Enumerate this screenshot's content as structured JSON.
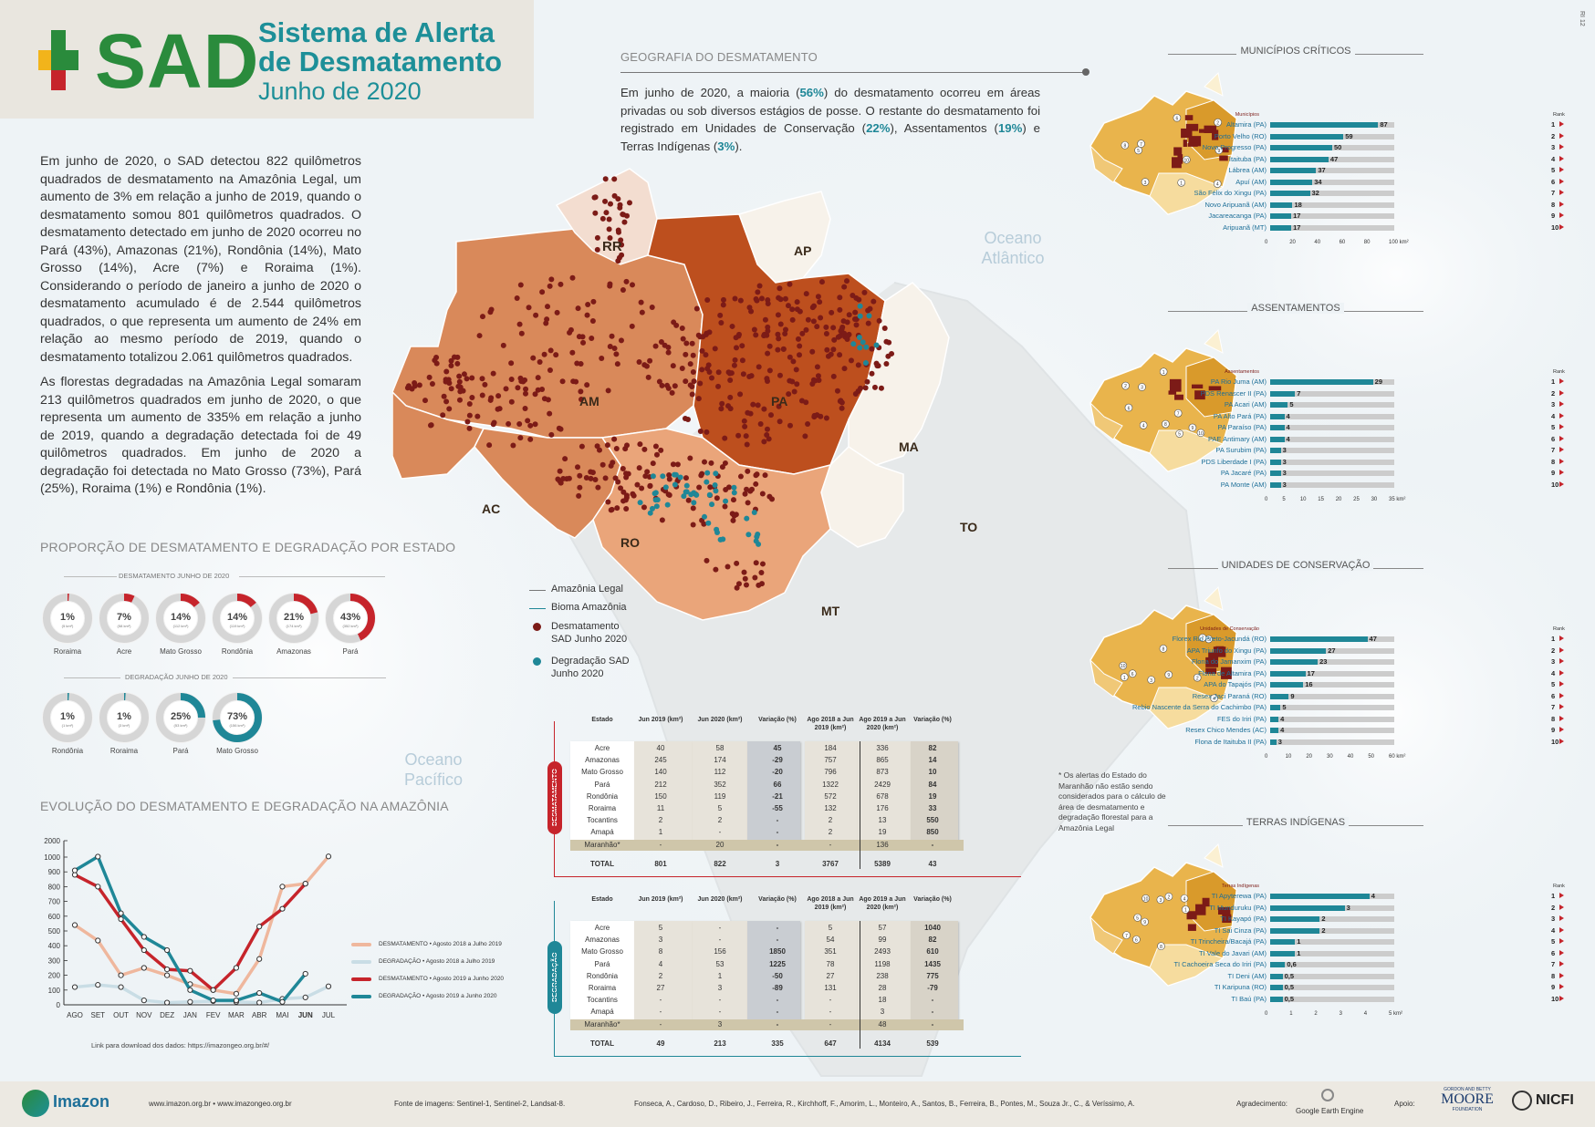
{
  "header": {
    "logo_text": "SAD",
    "title_line1": "Sistema de Alerta",
    "title_line2": "de Desmatamento",
    "subtitle": "Junho de 2020",
    "code": "RI 12"
  },
  "intro": {
    "p1": "Em junho de 2020, o SAD detectou 822 quilômetros quadrados de desmatamento na Amazônia Legal, um aumento de 3% em relação a junho de 2019, quando o desmatamento somou 801 quilômetros quadrados. O desmatamento detectado em junho de 2020 ocorreu no Pará (43%), Amazonas (21%), Rondônia (14%), Mato Grosso (14%), Acre (7%) e Roraima (1%). Considerando o período de janeiro a junho de 2020 o desmatamento acumulado é de 2.544 quilômetros quadrados, o que representa um aumento de 24% em relação ao mesmo período de 2019, quando o desmatamento totalizou 2.061 quilômetros quadrados.",
    "p2": "As florestas degradadas na Amazônia Legal somaram 213 quilômetros quadrados em junho de 2020, o que representa um aumento de 335% em relação a junho de 2019, quando a degradação detectada foi de 49 quilômetros quadrados. Em junho de 2020 a degradação foi detectada no Mato Grosso (73%), Pará (25%), Roraima (1%) e Rondônia (1%)."
  },
  "proportion": {
    "title": "PROPORÇÃO DE DESMATAMENTO E DEGRADAÇÃO POR ESTADO",
    "deforest_label": "DESMATAMENTO JUNHO DE 2020",
    "degrad_label": "DEGRADAÇÃO JUNHO DE 2020",
    "deforest_color": "#c6242b",
    "degrad_color": "#1f8797",
    "deforest": [
      {
        "pct": 1,
        "text": "1%",
        "km": "(5 km²)",
        "state": "Roraima"
      },
      {
        "pct": 7,
        "text": "7%",
        "km": "(58 km²)",
        "state": "Acre"
      },
      {
        "pct": 14,
        "text": "14%",
        "km": "(112 km²)",
        "state": "Mato Grosso"
      },
      {
        "pct": 14,
        "text": "14%",
        "km": "(119 km²)",
        "state": "Rondônia"
      },
      {
        "pct": 21,
        "text": "21%",
        "km": "(174 km²)",
        "state": "Amazonas"
      },
      {
        "pct": 43,
        "text": "43%",
        "km": "(352 km²)",
        "state": "Pará"
      }
    ],
    "degrad": [
      {
        "pct": 1,
        "text": "1%",
        "km": "(1 km²)",
        "state": "Rondônia"
      },
      {
        "pct": 1,
        "text": "1%",
        "km": "(3 km²)",
        "state": "Roraima"
      },
      {
        "pct": 25,
        "text": "25%",
        "km": "(53 km²)",
        "state": "Pará"
      },
      {
        "pct": 73,
        "text": "73%",
        "km": "(156 km²)",
        "state": "Mato Grosso"
      }
    ]
  },
  "evolution": {
    "title": "EVOLUÇÃO DO DESMATAMENTO E DEGRADAÇÃO NA AMAZÔNIA",
    "link": "Link para download dos dados: https://imazongeo.org.br/#/"
  },
  "chart_data": {
    "type": "line",
    "title": "EVOLUÇÃO DO DESMATAMENTO E DEGRADAÇÃO NA AMAZÔNIA",
    "categories": [
      "AGO",
      "SET",
      "OUT",
      "NOV",
      "DEZ",
      "JAN",
      "FEV",
      "MAR",
      "ABR",
      "MAI",
      "JUN",
      "JUL"
    ],
    "ylim": [
      0,
      2000
    ],
    "yticks": [
      0,
      100,
      200,
      300,
      400,
      500,
      600,
      700,
      800,
      900,
      1000,
      2000
    ],
    "series": [
      {
        "name": "DESMATAMENTO • Agosto 2018 a Julho 2019",
        "color": "#efb79d",
        "values": [
          540,
          435,
          200,
          250,
          200,
          140,
          100,
          75,
          310,
          800,
          820,
          1040
        ]
      },
      {
        "name": "DEGRADAÇÃO • Agosto 2018 a Julho 2019",
        "color": "#c9dde5",
        "values": [
          120,
          135,
          120,
          30,
          15,
          20,
          25,
          20,
          15,
          40,
          50,
          125
        ]
      },
      {
        "name": "DESMATAMENTO • Agosto 2019 a Junho 2020",
        "color": "#c6242b",
        "values": [
          880,
          800,
          580,
          370,
          240,
          230,
          100,
          250,
          530,
          650,
          820,
          null
        ]
      },
      {
        "name": "DEGRADAÇÃO • Agosto 2019 a Junho 2020",
        "color": "#1f8797",
        "values": [
          910,
          1030,
          620,
          460,
          370,
          100,
          30,
          30,
          80,
          20,
          210,
          null
        ]
      }
    ]
  },
  "geography": {
    "title": "GEOGRAFIA DO DESMATAMENTO",
    "text_a": "Em junho de 2020, a maioria (",
    "p56": "56%",
    "text_b": ") do desmatamento ocorreu em áreas privadas ou sob diversos estágios de posse. O restante do desmatamento foi registrado em Unidades de Conservação (",
    "p22": "22%",
    "text_c": "), Assentamentos (",
    "p19": "19%",
    "text_d": ") e Terras Indígenas (",
    "p3": "3%",
    "text_e": ")."
  },
  "map": {
    "states": [
      "RR",
      "AP",
      "AM",
      "PA",
      "MA",
      "AC",
      "RO",
      "TO",
      "MT"
    ],
    "ocean_atlantic": "Oceano Atlântico",
    "ocean_pacific": "Oceano Pacífico",
    "legend": [
      "Amazônia Legal",
      "Bioma Amazônia",
      "Desmatamento SAD Junho 2020",
      "Degradação SAD Junho 2020"
    ]
  },
  "table_deforest": {
    "side_label": "DESMATAMENTO",
    "headers": [
      "Estado",
      "Jun 2019 (km²)",
      "Jun 2020 (km²)",
      "Variação (%)",
      "Ago 2018 a Jun 2019 (km²)",
      "Ago 2019 a Jun 2020 (km²)",
      "Variação (%)"
    ],
    "rows": [
      [
        "Acre",
        "40",
        "58",
        "45",
        "184",
        "336",
        "82"
      ],
      [
        "Amazonas",
        "245",
        "174",
        "-29",
        "757",
        "865",
        "14"
      ],
      [
        "Mato Grosso",
        "140",
        "112",
        "-20",
        "796",
        "873",
        "10"
      ],
      [
        "Pará",
        "212",
        "352",
        "66",
        "1322",
        "2429",
        "84"
      ],
      [
        "Rondônia",
        "150",
        "119",
        "-21",
        "572",
        "678",
        "19"
      ],
      [
        "Roraima",
        "11",
        "5",
        "-55",
        "132",
        "176",
        "33"
      ],
      [
        "Tocantins",
        "2",
        "2",
        "-",
        "2",
        "13",
        "550"
      ],
      [
        "Amapá",
        "1",
        "-",
        "-",
        "2",
        "19",
        "850"
      ],
      [
        "Maranhão*",
        "-",
        "20",
        "-",
        "-",
        "136",
        "-"
      ]
    ],
    "total": [
      "TOTAL",
      "801",
      "822",
      "3",
      "3767",
      "5389",
      "43"
    ],
    "note": "* Os alertas do Estado do Maranhão não estão sendo considerados para o cálculo de área de desmatamento e degradação florestal para a Amazônia Legal"
  },
  "table_degrad": {
    "side_label": "DEGRADAÇÃO",
    "headers": [
      "Estado",
      "Jun 2019 (km²)",
      "Jun 2020 (km²)",
      "Variação (%)",
      "Ago 2018 a Jun 2019 (km²)",
      "Ago 2019 a Jun 2020 (km²)",
      "Variação (%)"
    ],
    "rows": [
      [
        "Acre",
        "5",
        "-",
        "-",
        "5",
        "57",
        "1040"
      ],
      [
        "Amazonas",
        "3",
        "-",
        "-",
        "54",
        "99",
        "82"
      ],
      [
        "Mato Grosso",
        "8",
        "156",
        "1850",
        "351",
        "2493",
        "610"
      ],
      [
        "Pará",
        "4",
        "53",
        "1225",
        "78",
        "1198",
        "1435"
      ],
      [
        "Rondônia",
        "2",
        "1",
        "-50",
        "27",
        "238",
        "775"
      ],
      [
        "Roraima",
        "27",
        "3",
        "-89",
        "131",
        "28",
        "-79"
      ],
      [
        "Tocantins",
        "-",
        "-",
        "-",
        "-",
        "18",
        "-"
      ],
      [
        "Amapá",
        "-",
        "-",
        "-",
        "-",
        "3",
        "-"
      ],
      [
        "Maranhão*",
        "-",
        "3",
        "-",
        "-",
        "48",
        "-"
      ]
    ],
    "total": [
      "TOTAL",
      "49",
      "213",
      "335",
      "647",
      "4134",
      "539"
    ]
  },
  "rankings": [
    {
      "title": "MUNICÍPIOS CRÍTICOS",
      "col": "Municípios",
      "rank": "Rank",
      "unit": "100 km²",
      "ticks": [
        "0",
        "20",
        "40",
        "60",
        "80",
        "100 km²"
      ],
      "max": 100,
      "items": [
        {
          "name": "Altamira (PA)",
          "value": 87,
          "label": "87"
        },
        {
          "name": "Porto Velho (RO)",
          "value": 59,
          "label": "59"
        },
        {
          "name": "Novo Progresso (PA)",
          "value": 50,
          "label": "50"
        },
        {
          "name": "Itaituba (PA)",
          "value": 47,
          "label": "47"
        },
        {
          "name": "Lábrea (AM)",
          "value": 37,
          "label": "37"
        },
        {
          "name": "Apuí (AM)",
          "value": 34,
          "label": "34"
        },
        {
          "name": "São Félix do Xingu (PA)",
          "value": 32,
          "label": "32"
        },
        {
          "name": "Novo Aripuanã (AM)",
          "value": 18,
          "label": "18"
        },
        {
          "name": "Jacareacanga (PA)",
          "value": 17,
          "label": "17"
        },
        {
          "name": "Aripuanã (MT)",
          "value": 17,
          "label": "17"
        }
      ]
    },
    {
      "title": "ASSENTAMENTOS",
      "col": "Assentamentos",
      "rank": "Rank",
      "unit": "35 km²",
      "ticks": [
        "0",
        "5",
        "10",
        "15",
        "20",
        "25",
        "30",
        "35 km²"
      ],
      "max": 35,
      "items": [
        {
          "name": "PA Rio Juma (AM)",
          "value": 29,
          "label": "29"
        },
        {
          "name": "PDS Renascer II (PA)",
          "value": 7,
          "label": "7"
        },
        {
          "name": "PA Acari (AM)",
          "value": 5,
          "label": "5"
        },
        {
          "name": "PA Alto Pará (PA)",
          "value": 4,
          "label": "4"
        },
        {
          "name": "PA Paraíso (PA)",
          "value": 4,
          "label": "4"
        },
        {
          "name": "PAE Antimary (AM)",
          "value": 4,
          "label": "4"
        },
        {
          "name": "PA Surubim (PA)",
          "value": 3,
          "label": "3"
        },
        {
          "name": "PDS Liberdade I (PA)",
          "value": 3,
          "label": "3"
        },
        {
          "name": "PA Jacaré (PA)",
          "value": 3,
          "label": "3"
        },
        {
          "name": "PA Monte (AM)",
          "value": 3,
          "label": "3"
        }
      ]
    },
    {
      "title": "UNIDADES DE CONSERVAÇÃO",
      "col": "Unidades de Conservação",
      "rank": "Rank",
      "unit": "60 km²",
      "ticks": [
        "0",
        "10",
        "20",
        "30",
        "40",
        "50",
        "60 km²"
      ],
      "max": 60,
      "items": [
        {
          "name": "Florex Rio Preto-Jacundá (RO)",
          "value": 47,
          "label": "47"
        },
        {
          "name": "APA Triunfo do Xingu (PA)",
          "value": 27,
          "label": "27"
        },
        {
          "name": "Flona do Jamanxim (PA)",
          "value": 23,
          "label": "23"
        },
        {
          "name": "Flona de Altamira (PA)",
          "value": 17,
          "label": "17"
        },
        {
          "name": "APA do Tapajós (PA)",
          "value": 16,
          "label": "16"
        },
        {
          "name": "Resex Jaci Paraná (RO)",
          "value": 9,
          "label": "9"
        },
        {
          "name": "Rebio Nascente da Serra do Cachimbo (PA)",
          "value": 5,
          "label": "5"
        },
        {
          "name": "FES do Iriri (PA)",
          "value": 4,
          "label": "4"
        },
        {
          "name": "Resex Chico Mendes (AC)",
          "value": 4,
          "label": "4"
        },
        {
          "name": "Flona de Itaituba II (PA)",
          "value": 3,
          "label": "3"
        }
      ]
    },
    {
      "title": "TERRAS INDÍGENAS",
      "col": "Terras Indígenas",
      "rank": "Rank",
      "unit": "5 km²",
      "ticks": [
        "0",
        "1",
        "2",
        "3",
        "4",
        "5 km²"
      ],
      "max": 5,
      "items": [
        {
          "name": "TI Apyterewa (PA)",
          "value": 4,
          "label": "4"
        },
        {
          "name": "TI Munduruku (PA)",
          "value": 3,
          "label": "3"
        },
        {
          "name": "TI Kayapó (PA)",
          "value": 2,
          "label": "2"
        },
        {
          "name": "TI Sai Cinza (PA)",
          "value": 2,
          "label": "2"
        },
        {
          "name": "TI Trincheira/Bacajá (PA)",
          "value": 1,
          "label": "1"
        },
        {
          "name": "TI Vale do Javari (AM)",
          "value": 1,
          "label": "1"
        },
        {
          "name": "TI Cachoeira Seca do Iriri (PA)",
          "value": 0.6,
          "label": "0,6"
        },
        {
          "name": "TI Deni (AM)",
          "value": 0.5,
          "label": "0,5"
        },
        {
          "name": "TI Karipuna (RO)",
          "value": 0.5,
          "label": "0,5"
        },
        {
          "name": "TI Baú (PA)",
          "value": 0.5,
          "label": "0,5"
        }
      ]
    }
  ],
  "footer": {
    "brand": "Imazon",
    "sites": "www.imazon.org.br • www.imazongeo.org.br",
    "source": "Fonte de imagens: Sentinel-1, Sentinel-2, Landsat-8.",
    "authors": "Fonseca, A., Cardoso, D., Ribeiro, J., Ferreira, R., Kirchhoff, F., Amorim, L., Monteiro, A., Santos, B., Ferreira, B., Pontes, M., Souza Jr., C., & Veríssimo, A.",
    "ack": "Agradecimento:",
    "google": "Google Earth Engine",
    "support": "Apoio:",
    "moore1": "GORDON AND BETTY",
    "moore2": "MOORE",
    "moore3": "FOUNDATION",
    "nicfi": "NICFI"
  }
}
